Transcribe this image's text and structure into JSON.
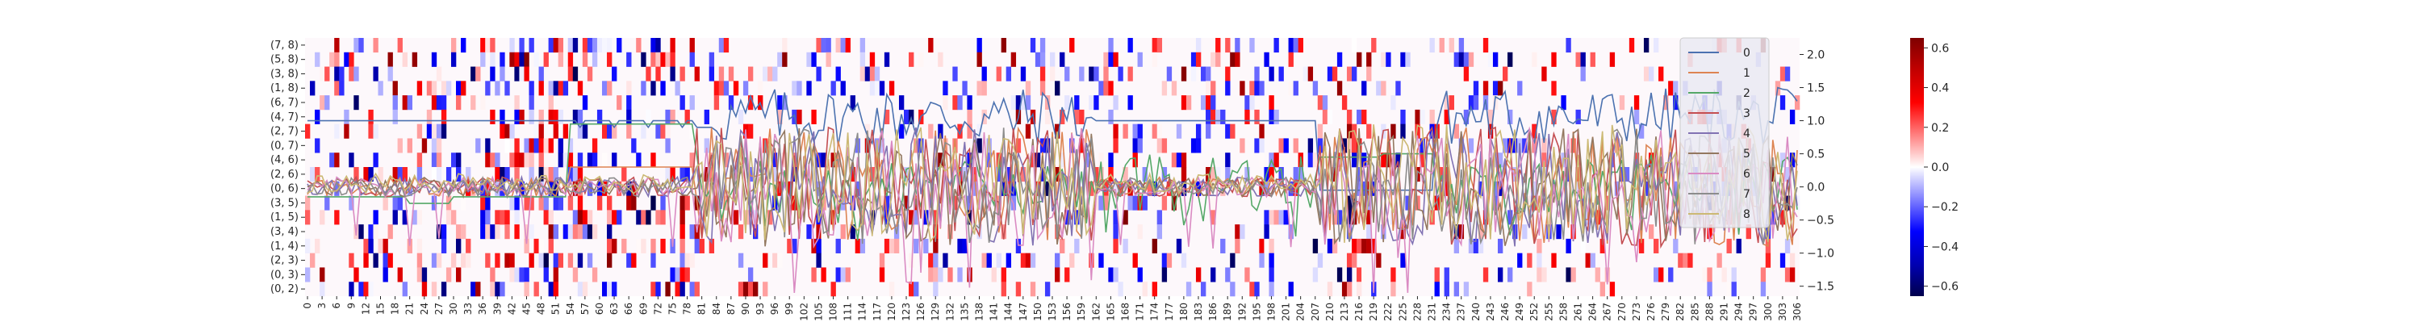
{
  "chart_data": {
    "type": "heatmap",
    "heatmap": {
      "row_labels": [
        "(7, 8)",
        "(5, 8)",
        "(3, 8)",
        "(1, 8)",
        "(6, 7)",
        "(4, 7)",
        "(2, 7)",
        "(0, 7)",
        "(4, 6)",
        "(2, 6)",
        "(0, 6)",
        "(3, 5)",
        "(1, 5)",
        "(3, 4)",
        "(1, 4)",
        "(2, 3)",
        "(0, 3)",
        "(0, 2)"
      ],
      "n_columns": 307,
      "x_tick_step": 3,
      "vmin": -0.65,
      "vmax": 0.65,
      "colormap": "seismic",
      "colors": {
        "low": "#00004c",
        "mid": "#ffffff",
        "high": "#7f0000"
      },
      "colorbar_ticks": [
        "0.6",
        "0.4",
        "0.2",
        "0.0",
        "−0.2",
        "−0.4",
        "−0.6"
      ],
      "colorbar_values": [
        0.6,
        0.4,
        0.2,
        0.0,
        -0.2,
        -0.4,
        -0.6
      ]
    },
    "line_overlay": {
      "type": "line",
      "y_ticks": [
        "2.0",
        "1.5",
        "1.0",
        "0.5",
        "0.0",
        "−0.5",
        "−1.0",
        "−1.5"
      ],
      "y_tick_values": [
        2.0,
        1.5,
        1.0,
        0.5,
        0.0,
        -0.5,
        -1.0,
        -1.5
      ],
      "ylim": [
        -1.65,
        2.25
      ],
      "legend_placement": "upper-right",
      "series": [
        {
          "name": "0",
          "color": "#4c72b0"
        },
        {
          "name": "1",
          "color": "#dd8452"
        },
        {
          "name": "2",
          "color": "#55a868"
        },
        {
          "name": "3",
          "color": "#c44e52"
        },
        {
          "name": "4",
          "color": "#8172b3"
        },
        {
          "name": "5",
          "color": "#937860"
        },
        {
          "name": "6",
          "color": "#da8bc3"
        },
        {
          "name": "7",
          "color": "#8c8c8c"
        },
        {
          "name": "8",
          "color": "#ccb974"
        }
      ]
    }
  }
}
